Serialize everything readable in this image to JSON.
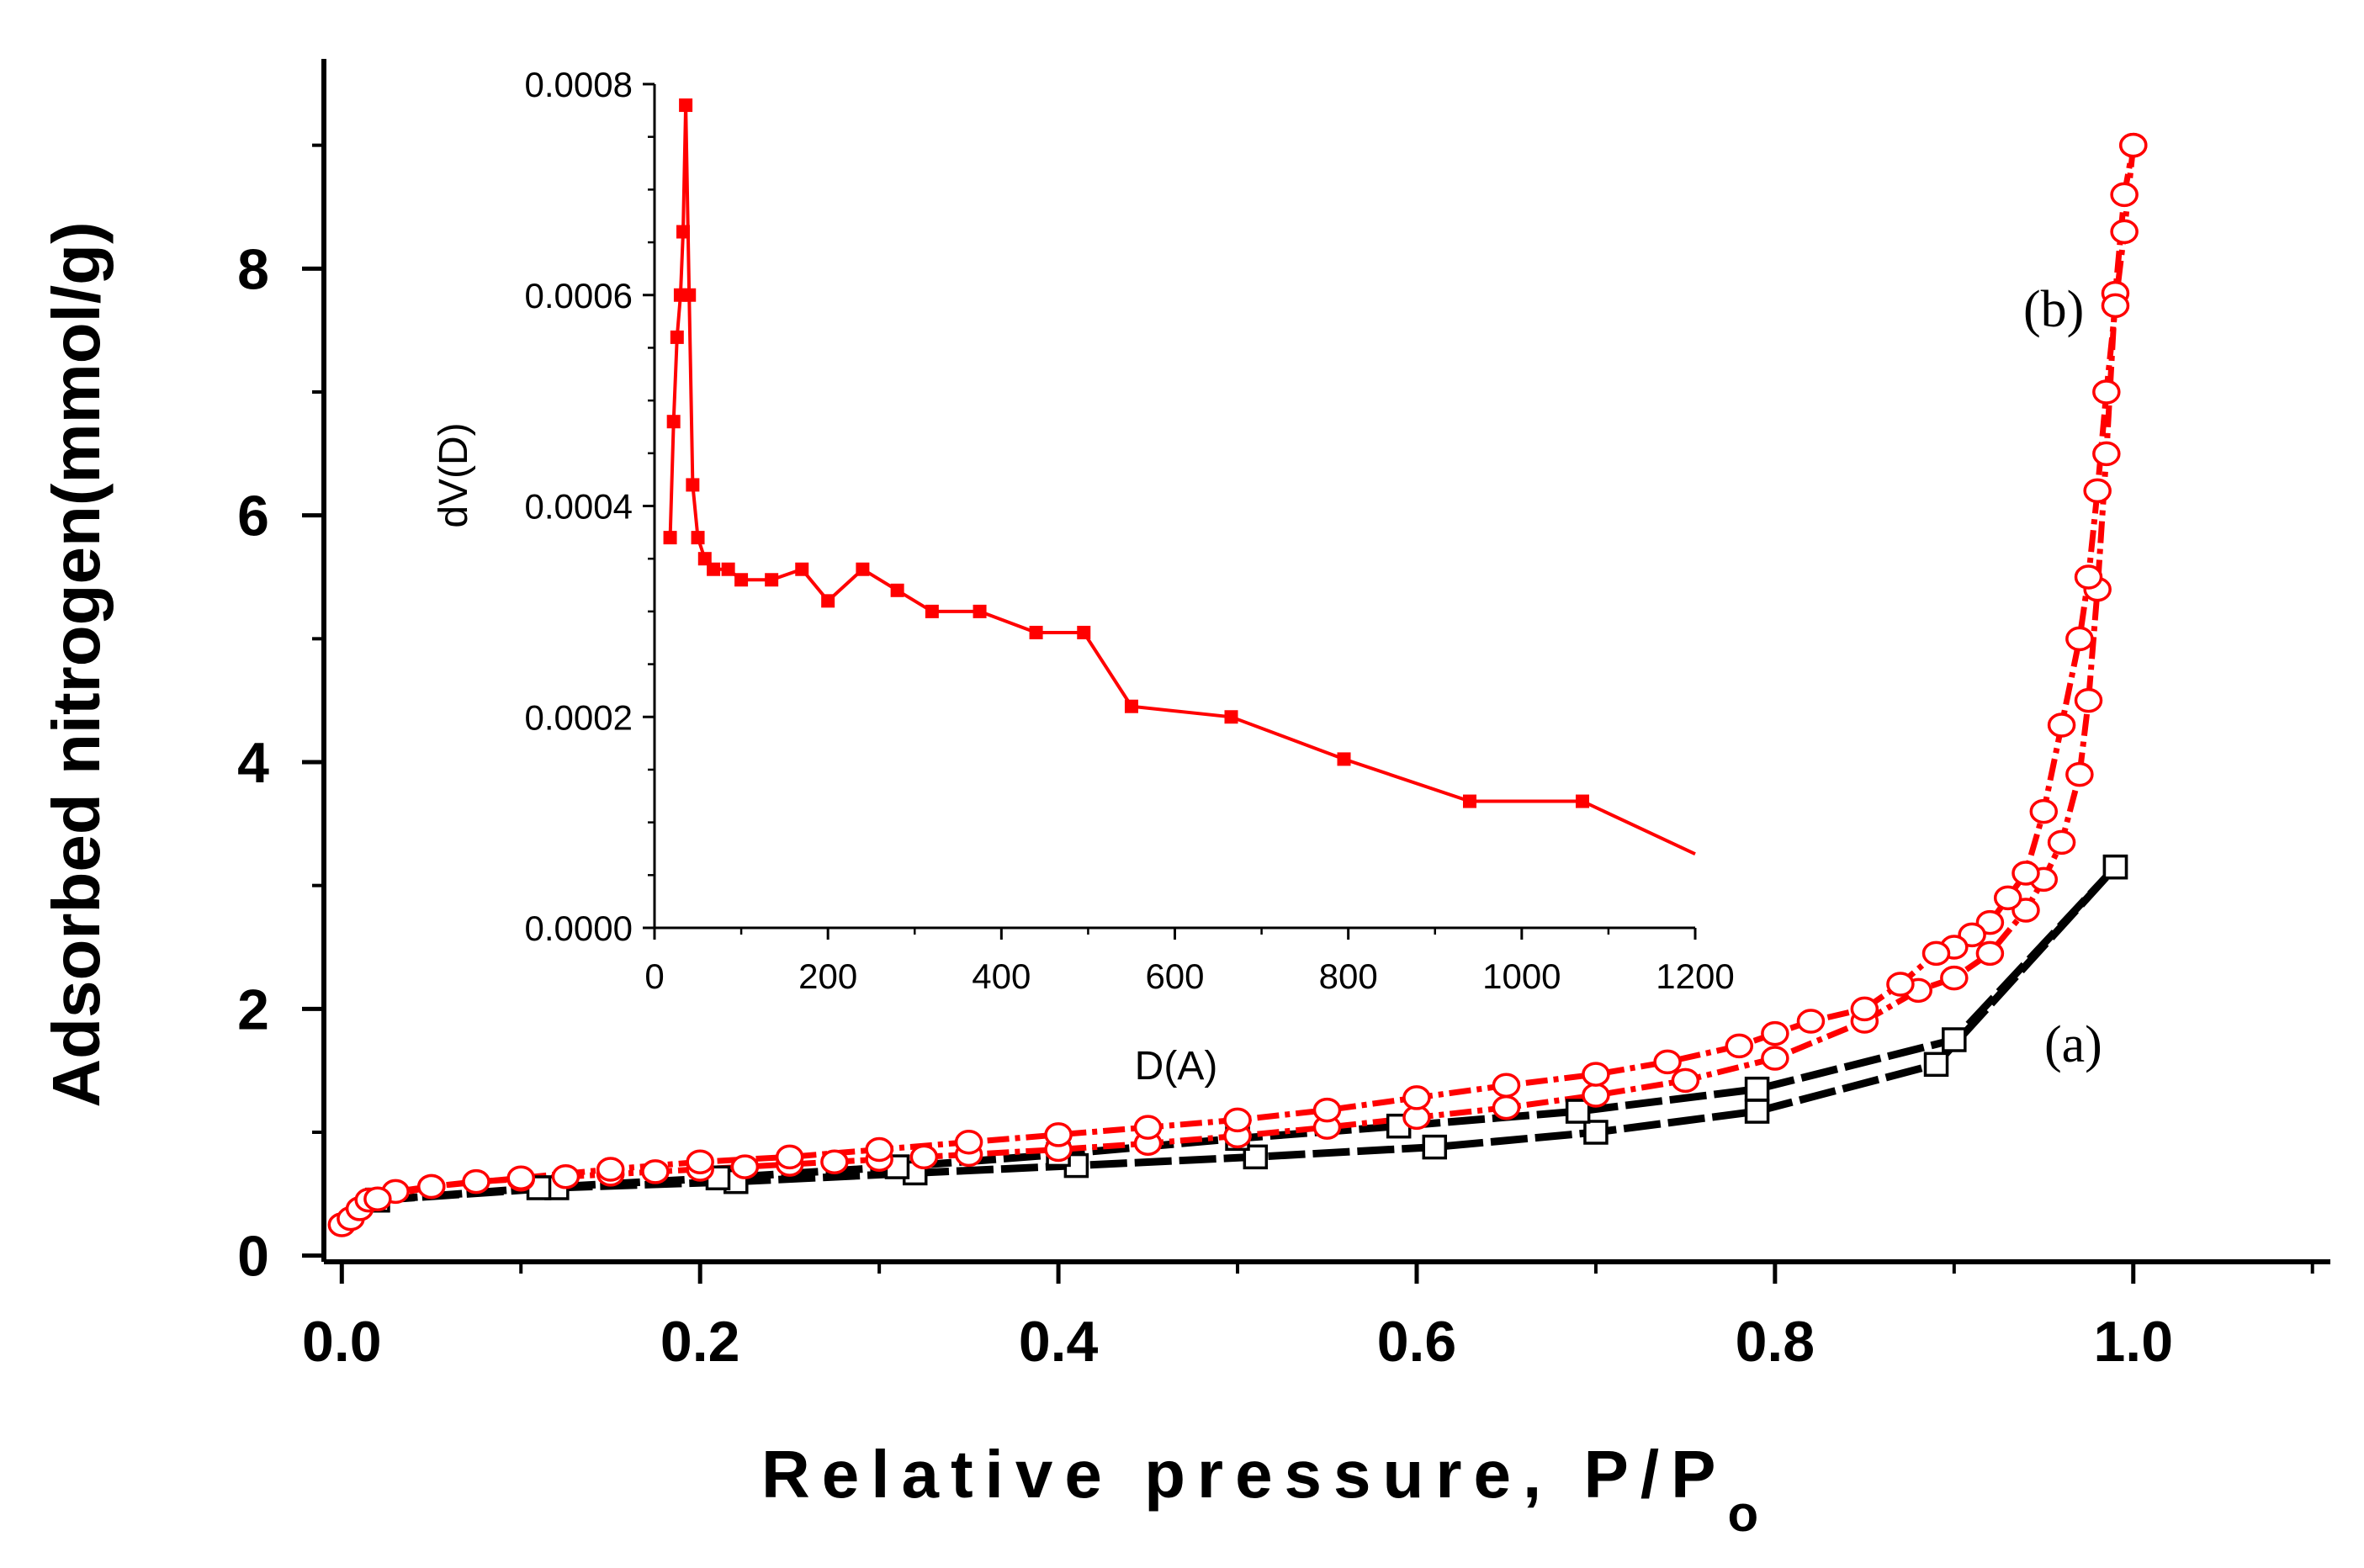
{
  "chart_data": [
    {
      "type": "scatter",
      "role": "main",
      "xlabel": "Relative pressure, P/P",
      "xlabel_subscript": "o",
      "ylabel": "Adsorbed nitrogen(mmol/g)",
      "xlim": [
        -0.01,
        1.11
      ],
      "ylim": [
        -0.05,
        9.7
      ],
      "x_ticks": [
        "0.0",
        "0.2",
        "0.4",
        "0.6",
        "0.8",
        "1.0"
      ],
      "y_ticks": [
        "0",
        "2",
        "4",
        "6",
        "8"
      ],
      "colors": {
        "a": "#000000",
        "b": "#ff0000"
      },
      "series": [
        {
          "name": "(a) adsorption",
          "label": "(a)",
          "marker": "square",
          "color": "#000000",
          "x": [
            0.02,
            0.12,
            0.22,
            0.32,
            0.41,
            0.51,
            0.61,
            0.7,
            0.79,
            0.89,
            0.99
          ],
          "y": [
            0.45,
            0.55,
            0.6,
            0.67,
            0.73,
            0.8,
            0.88,
            1.0,
            1.17,
            1.55,
            3.15
          ]
        },
        {
          "name": "(a) desorption",
          "label": "",
          "marker": "square",
          "color": "#000000",
          "x": [
            0.99,
            0.9,
            0.79,
            0.69,
            0.59,
            0.5,
            0.4,
            0.31,
            0.21,
            0.11,
            0.02
          ],
          "y": [
            3.15,
            1.75,
            1.35,
            1.17,
            1.05,
            0.95,
            0.82,
            0.72,
            0.63,
            0.55,
            0.45
          ]
        },
        {
          "name": "(b) adsorption",
          "label": "(b)",
          "marker": "circle",
          "color": "#ff0000",
          "x": [
            0.0,
            0.005,
            0.01,
            0.015,
            0.03,
            0.05,
            0.075,
            0.1,
            0.125,
            0.15,
            0.175,
            0.2,
            0.225,
            0.25,
            0.275,
            0.3,
            0.325,
            0.35,
            0.4,
            0.45,
            0.5,
            0.55,
            0.6,
            0.65,
            0.7,
            0.75,
            0.8,
            0.85,
            0.88,
            0.9,
            0.92,
            0.94,
            0.95,
            0.96,
            0.97,
            0.975,
            0.98,
            0.985,
            0.99,
            0.995,
            1.0
          ],
          "y": [
            0.25,
            0.3,
            0.38,
            0.45,
            0.52,
            0.56,
            0.6,
            0.62,
            0.64,
            0.66,
            0.68,
            0.7,
            0.72,
            0.74,
            0.76,
            0.78,
            0.8,
            0.82,
            0.86,
            0.91,
            0.97,
            1.04,
            1.12,
            1.2,
            1.3,
            1.42,
            1.6,
            1.9,
            2.15,
            2.25,
            2.45,
            2.8,
            3.05,
            3.35,
            3.9,
            4.5,
            5.4,
            6.5,
            7.8,
            8.6,
            9.0
          ]
        },
        {
          "name": "(b) desorption",
          "label": "",
          "marker": "circle",
          "color": "#ff0000",
          "x": [
            1.0,
            0.995,
            0.99,
            0.985,
            0.98,
            0.975,
            0.97,
            0.96,
            0.95,
            0.94,
            0.93,
            0.92,
            0.91,
            0.9,
            0.89,
            0.87,
            0.85,
            0.82,
            0.8,
            0.78,
            0.74,
            0.7,
            0.65,
            0.6,
            0.55,
            0.5,
            0.45,
            0.4,
            0.35,
            0.3,
            0.25,
            0.2,
            0.15,
            0.1,
            0.05,
            0.02
          ],
          "y": [
            9.0,
            8.3,
            7.7,
            7.0,
            6.2,
            5.5,
            5.0,
            4.3,
            3.6,
            3.1,
            2.9,
            2.7,
            2.6,
            2.5,
            2.45,
            2.2,
            2.0,
            1.9,
            1.8,
            1.7,
            1.57,
            1.47,
            1.38,
            1.28,
            1.18,
            1.1,
            1.04,
            0.98,
            0.92,
            0.86,
            0.8,
            0.76,
            0.7,
            0.63,
            0.56,
            0.46
          ]
        }
      ]
    },
    {
      "type": "line",
      "role": "inset",
      "xlabel": "D(A)",
      "ylabel": "dV(D)",
      "xlim": [
        0,
        1200
      ],
      "ylim": [
        0,
        0.0008
      ],
      "x_ticks": [
        "0",
        "200",
        "400",
        "600",
        "800",
        "1000",
        "1200"
      ],
      "y_ticks": [
        "0.0000",
        "0.0002",
        "0.0004",
        "0.0006",
        "0.0008"
      ],
      "color": "#ff0000",
      "series": [
        {
          "name": "dV(D)",
          "marker": "square",
          "x": [
            18,
            22,
            26,
            30,
            33,
            36,
            40,
            44,
            50,
            58,
            68,
            85,
            100,
            135,
            170,
            200,
            240,
            280,
            320,
            375,
            440,
            495,
            550,
            665,
            795,
            940,
            1070,
            1200
          ],
          "y": [
            0.00037,
            0.00048,
            0.00056,
            0.0006,
            0.00066,
            0.00078,
            0.0006,
            0.00042,
            0.00037,
            0.00035,
            0.00034,
            0.00034,
            0.00033,
            0.00033,
            0.00034,
            0.00031,
            0.00034,
            0.00032,
            0.0003,
            0.0003,
            0.00028,
            0.00028,
            0.00021,
            0.0002,
            0.00016,
            0.00012,
            0.00012,
            7e-05
          ]
        }
      ]
    }
  ]
}
